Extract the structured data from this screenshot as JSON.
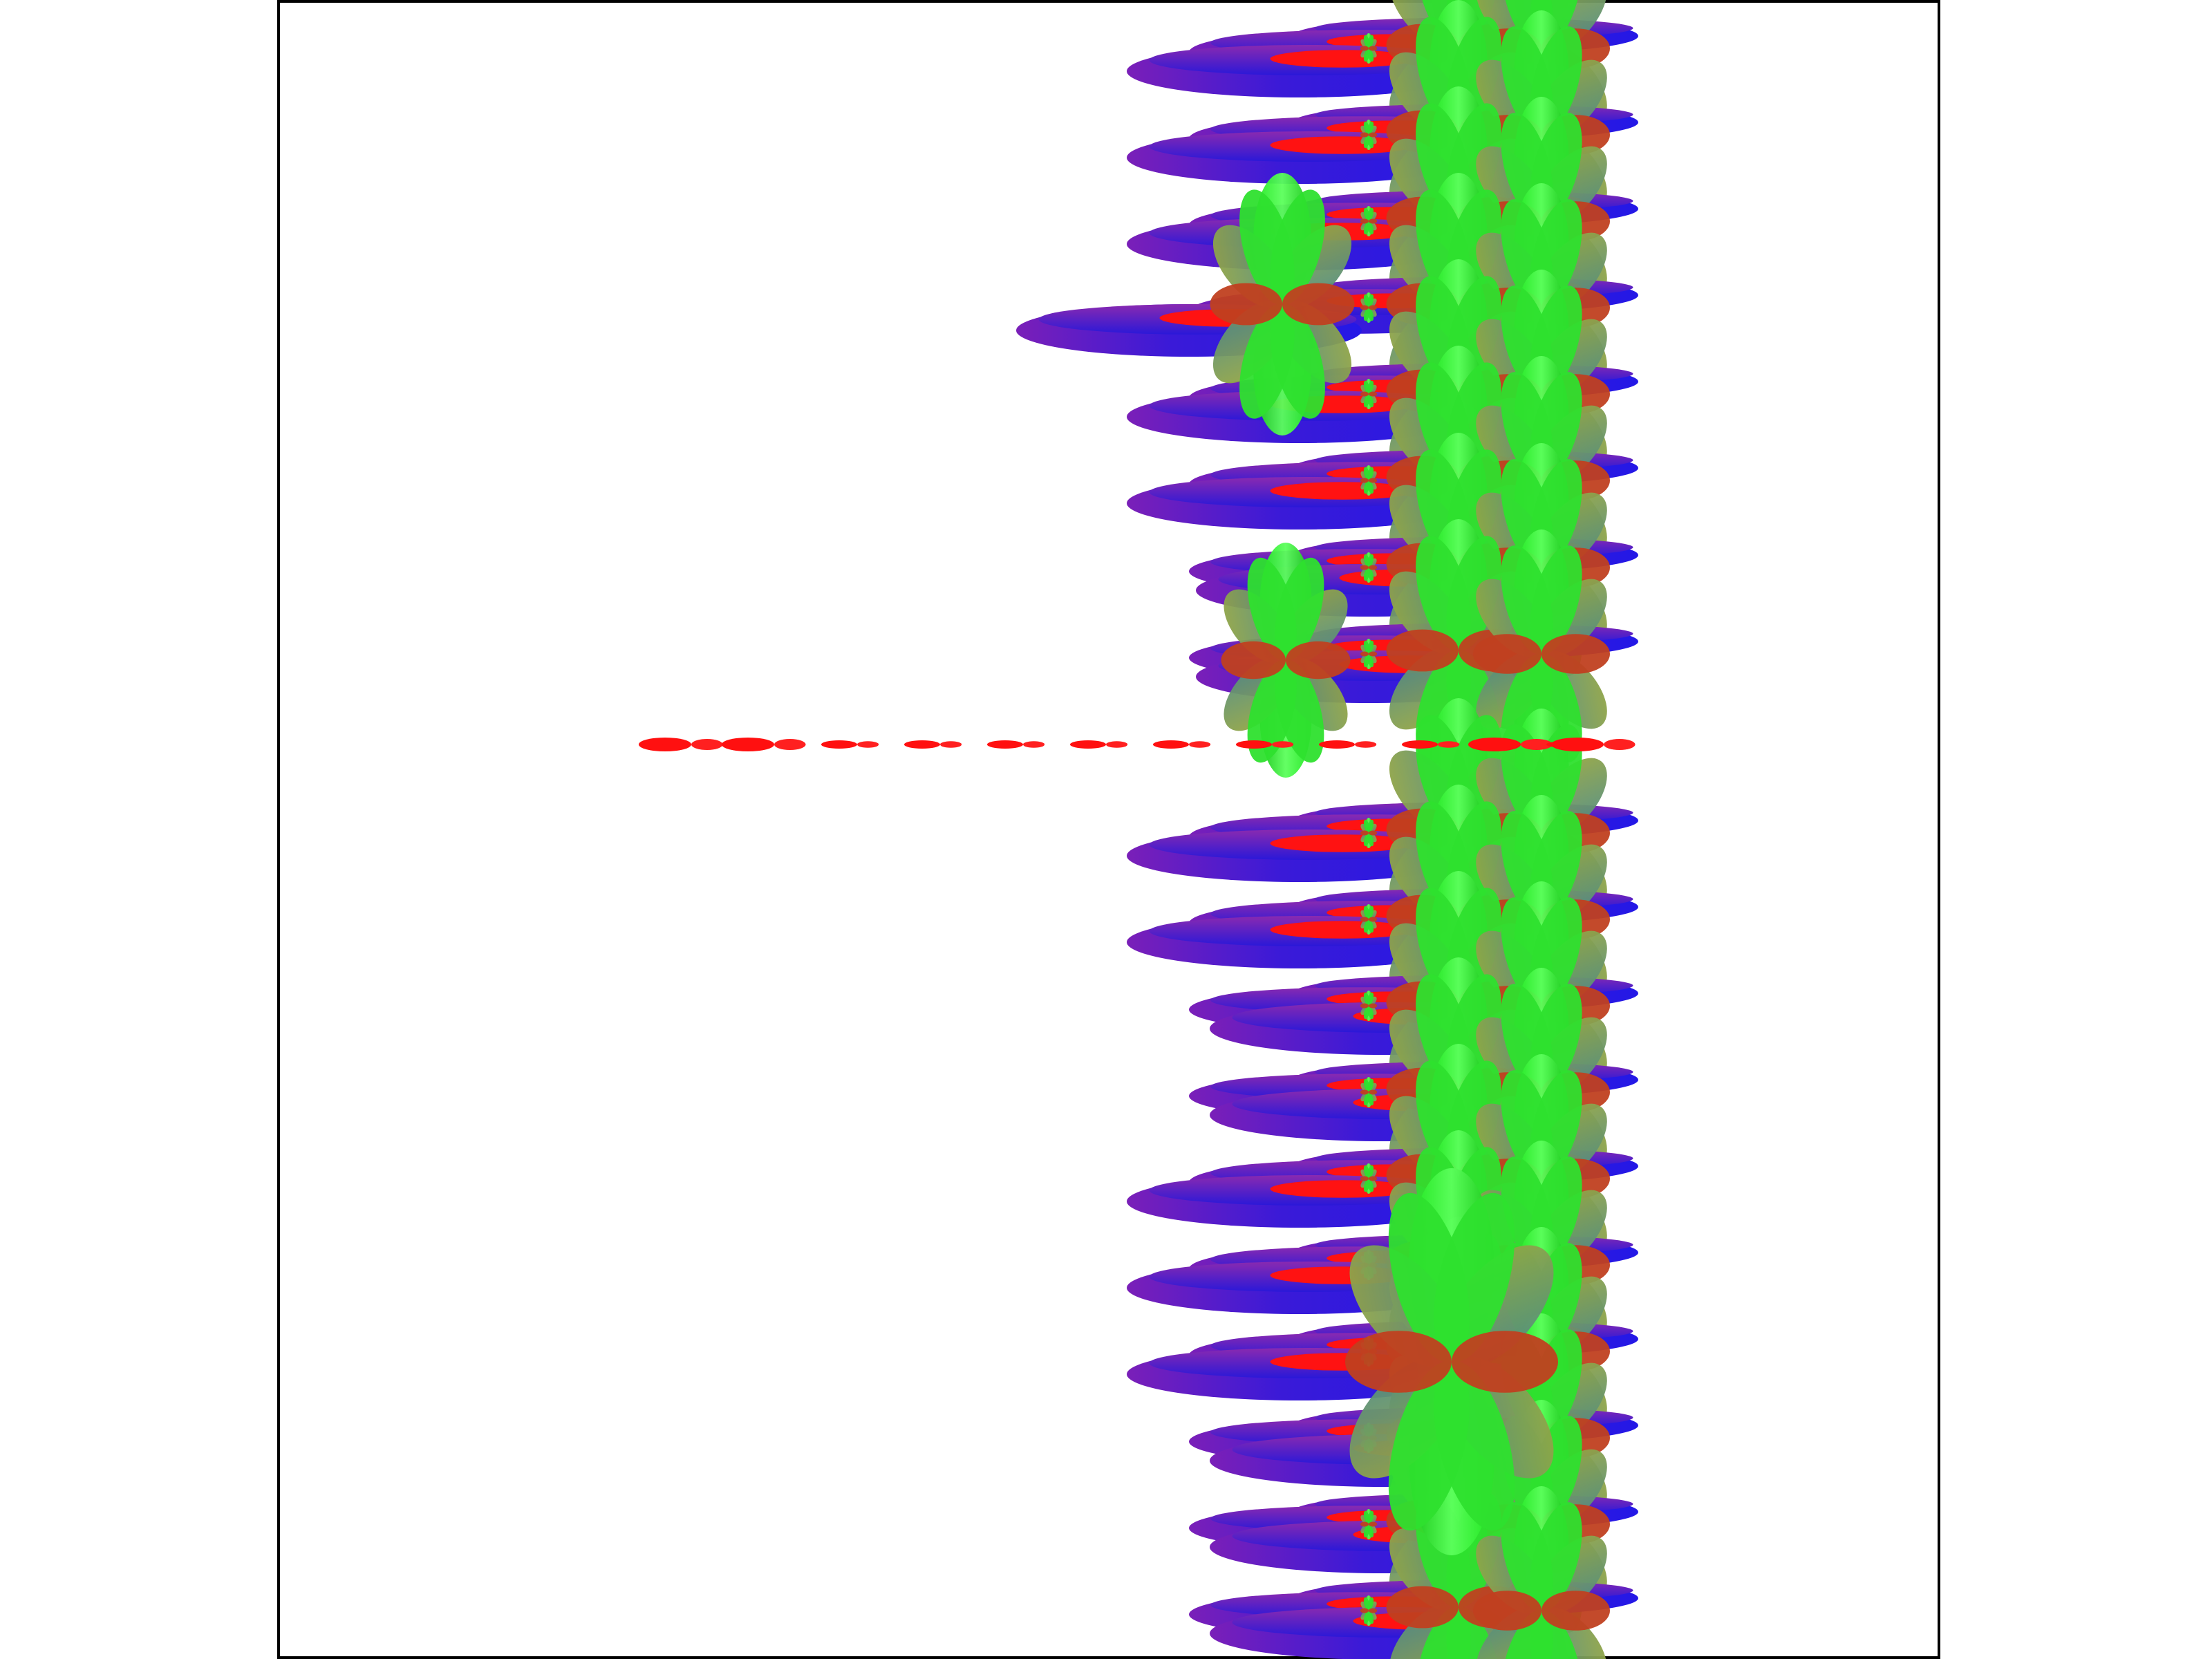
{
  "figure": {
    "background": "#ffffff",
    "frame_color": "#000000",
    "palette": {
      "violet": "#7a1fb8",
      "blue": "#2020e0",
      "red": "#ff1010",
      "green": "#22ee22",
      "olive": "#8a9a3a",
      "teal": "#4a8a8a"
    }
  }
}
